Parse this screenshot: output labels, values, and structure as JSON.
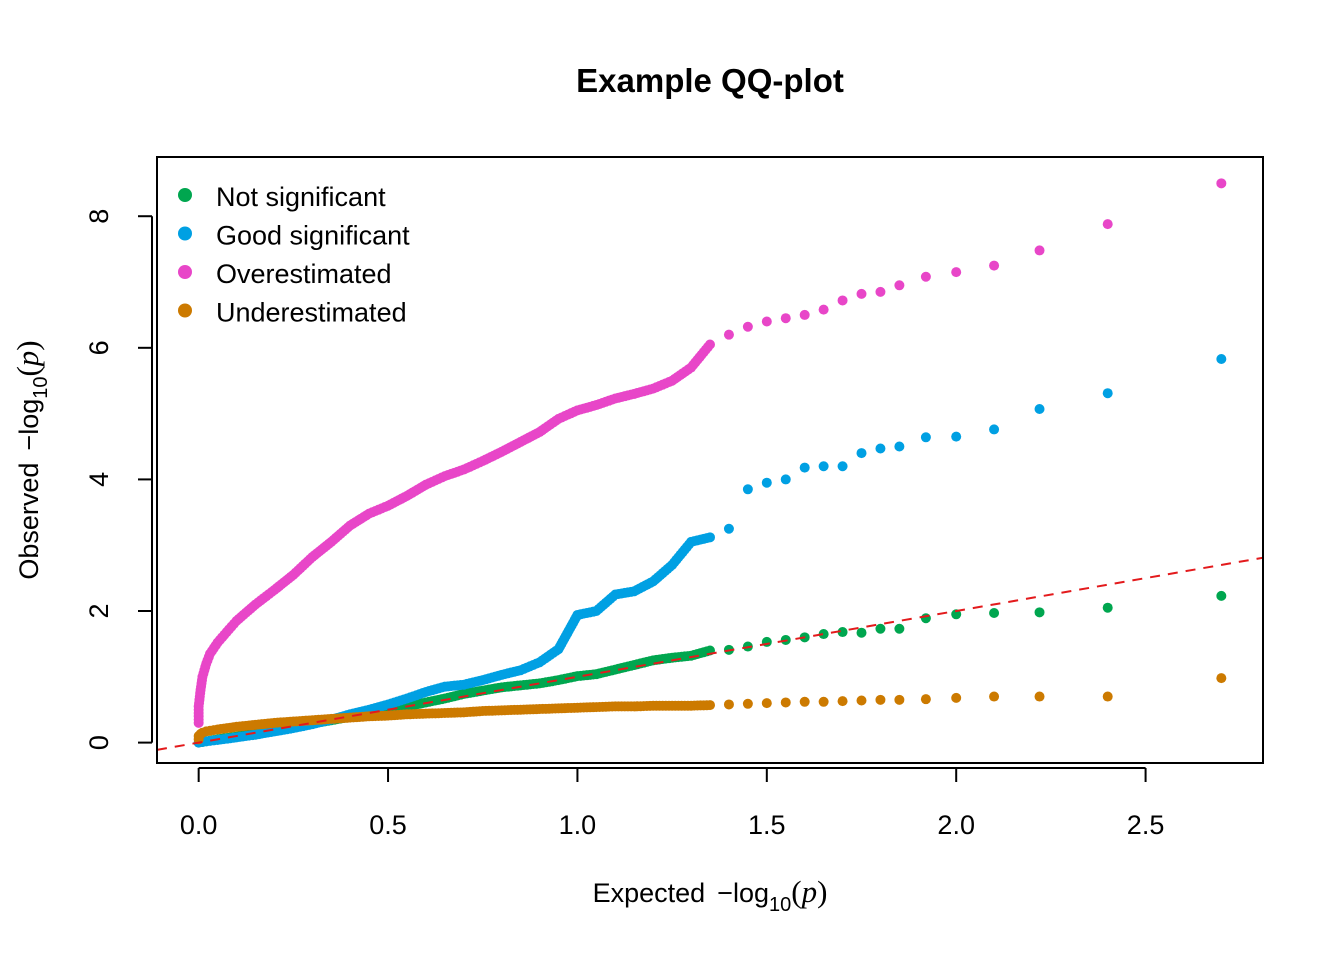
{
  "chart_data": {
    "type": "scatter",
    "title": "Example QQ-plot",
    "xlabel": {
      "prefix": "Expected",
      "minus": "−",
      "fn": "log",
      "sub": "10",
      "open": "(",
      "var": "p",
      "close": ")"
    },
    "ylabel": {
      "prefix": "Observed",
      "minus": "−",
      "fn": "log",
      "sub": "10",
      "open": "(",
      "var": "p",
      "close": ")"
    },
    "xlim": [
      -0.11,
      2.81
    ],
    "ylim": [
      -0.31,
      8.9
    ],
    "x_ticks": [
      "0.0",
      "0.5",
      "1.0",
      "1.5",
      "2.0",
      "2.5"
    ],
    "y_ticks": [
      "0",
      "2",
      "4",
      "6",
      "8"
    ],
    "reference_line": {
      "slope": 1,
      "intercept": 0,
      "color": "#e31a1c",
      "style": "dashed"
    },
    "legend_position": "top-left",
    "series": [
      {
        "name": "Not significant",
        "color": "#00a64f",
        "points": [
          [
            0.0,
            0.0
          ],
          [
            0.02,
            0.02
          ],
          [
            0.05,
            0.05
          ],
          [
            0.1,
            0.09
          ],
          [
            0.15,
            0.14
          ],
          [
            0.2,
            0.19
          ],
          [
            0.25,
            0.24
          ],
          [
            0.3,
            0.29
          ],
          [
            0.35,
            0.34
          ],
          [
            0.4,
            0.39
          ],
          [
            0.45,
            0.44
          ],
          [
            0.5,
            0.49
          ],
          [
            0.55,
            0.55
          ],
          [
            0.6,
            0.61
          ],
          [
            0.65,
            0.67
          ],
          [
            0.7,
            0.74
          ],
          [
            0.75,
            0.79
          ],
          [
            0.8,
            0.84
          ],
          [
            0.85,
            0.87
          ],
          [
            0.9,
            0.9
          ],
          [
            0.95,
            0.95
          ],
          [
            1.0,
            1.01
          ],
          [
            1.05,
            1.04
          ],
          [
            1.1,
            1.11
          ],
          [
            1.15,
            1.18
          ],
          [
            1.2,
            1.25
          ],
          [
            1.25,
            1.29
          ],
          [
            1.3,
            1.32
          ],
          [
            1.35,
            1.4
          ],
          [
            1.4,
            1.41
          ],
          [
            1.45,
            1.46
          ],
          [
            1.5,
            1.53
          ],
          [
            1.55,
            1.56
          ],
          [
            1.6,
            1.6
          ],
          [
            1.65,
            1.65
          ],
          [
            1.7,
            1.68
          ],
          [
            1.75,
            1.67
          ],
          [
            1.8,
            1.73
          ],
          [
            1.85,
            1.73
          ],
          [
            1.92,
            1.89
          ],
          [
            2.0,
            1.95
          ],
          [
            2.1,
            1.97
          ],
          [
            2.22,
            1.98
          ],
          [
            2.4,
            2.05
          ],
          [
            2.7,
            2.23
          ]
        ]
      },
      {
        "name": "Good significant",
        "color": "#00a0e3",
        "points": [
          [
            0.0,
            0.0
          ],
          [
            0.02,
            0.02
          ],
          [
            0.05,
            0.04
          ],
          [
            0.1,
            0.08
          ],
          [
            0.15,
            0.12
          ],
          [
            0.2,
            0.17
          ],
          [
            0.25,
            0.22
          ],
          [
            0.3,
            0.28
          ],
          [
            0.35,
            0.35
          ],
          [
            0.4,
            0.43
          ],
          [
            0.45,
            0.5
          ],
          [
            0.5,
            0.58
          ],
          [
            0.55,
            0.67
          ],
          [
            0.6,
            0.77
          ],
          [
            0.65,
            0.85
          ],
          [
            0.7,
            0.88
          ],
          [
            0.75,
            0.95
          ],
          [
            0.8,
            1.03
          ],
          [
            0.85,
            1.1
          ],
          [
            0.9,
            1.22
          ],
          [
            0.95,
            1.42
          ],
          [
            1.0,
            1.94
          ],
          [
            1.05,
            2.0
          ],
          [
            1.1,
            2.25
          ],
          [
            1.15,
            2.3
          ],
          [
            1.2,
            2.45
          ],
          [
            1.25,
            2.7
          ],
          [
            1.3,
            3.05
          ],
          [
            1.35,
            3.12
          ],
          [
            1.4,
            3.25
          ],
          [
            1.45,
            3.85
          ],
          [
            1.5,
            3.95
          ],
          [
            1.55,
            4.0
          ],
          [
            1.6,
            4.18
          ],
          [
            1.65,
            4.2
          ],
          [
            1.7,
            4.2
          ],
          [
            1.75,
            4.4
          ],
          [
            1.8,
            4.47
          ],
          [
            1.85,
            4.5
          ],
          [
            1.92,
            4.64
          ],
          [
            2.0,
            4.65
          ],
          [
            2.1,
            4.76
          ],
          [
            2.22,
            5.07
          ],
          [
            2.4,
            5.31
          ],
          [
            2.7,
            5.83
          ]
        ]
      },
      {
        "name": "Overestimated",
        "color": "#e846c8",
        "points": [
          [
            0.0,
            0.3
          ],
          [
            0.0,
            0.55
          ],
          [
            0.005,
            0.8
          ],
          [
            0.01,
            1.0
          ],
          [
            0.02,
            1.2
          ],
          [
            0.03,
            1.35
          ],
          [
            0.05,
            1.52
          ],
          [
            0.08,
            1.72
          ],
          [
            0.1,
            1.85
          ],
          [
            0.15,
            2.1
          ],
          [
            0.2,
            2.32
          ],
          [
            0.25,
            2.55
          ],
          [
            0.3,
            2.82
          ],
          [
            0.35,
            3.05
          ],
          [
            0.4,
            3.3
          ],
          [
            0.45,
            3.48
          ],
          [
            0.5,
            3.6
          ],
          [
            0.55,
            3.75
          ],
          [
            0.6,
            3.92
          ],
          [
            0.65,
            4.05
          ],
          [
            0.7,
            4.15
          ],
          [
            0.75,
            4.28
          ],
          [
            0.8,
            4.42
          ],
          [
            0.85,
            4.57
          ],
          [
            0.9,
            4.72
          ],
          [
            0.95,
            4.92
          ],
          [
            1.0,
            5.05
          ],
          [
            1.05,
            5.13
          ],
          [
            1.1,
            5.23
          ],
          [
            1.15,
            5.3
          ],
          [
            1.2,
            5.38
          ],
          [
            1.25,
            5.5
          ],
          [
            1.3,
            5.7
          ],
          [
            1.35,
            6.05
          ],
          [
            1.4,
            6.2
          ],
          [
            1.45,
            6.32
          ],
          [
            1.5,
            6.4
          ],
          [
            1.55,
            6.45
          ],
          [
            1.6,
            6.5
          ],
          [
            1.65,
            6.58
          ],
          [
            1.7,
            6.72
          ],
          [
            1.75,
            6.82
          ],
          [
            1.8,
            6.85
          ],
          [
            1.85,
            6.95
          ],
          [
            1.92,
            7.08
          ],
          [
            2.0,
            7.15
          ],
          [
            2.1,
            7.25
          ],
          [
            2.22,
            7.48
          ],
          [
            2.4,
            7.88
          ],
          [
            2.7,
            8.5
          ]
        ]
      },
      {
        "name": "Underestimated",
        "color": "#cc7a00",
        "points": [
          [
            0.0,
            0.05
          ],
          [
            0.0,
            0.1
          ],
          [
            0.005,
            0.13
          ],
          [
            0.01,
            0.15
          ],
          [
            0.02,
            0.17
          ],
          [
            0.05,
            0.2
          ],
          [
            0.1,
            0.24
          ],
          [
            0.15,
            0.27
          ],
          [
            0.2,
            0.3
          ],
          [
            0.25,
            0.32
          ],
          [
            0.3,
            0.34
          ],
          [
            0.35,
            0.36
          ],
          [
            0.4,
            0.38
          ],
          [
            0.45,
            0.4
          ],
          [
            0.5,
            0.41
          ],
          [
            0.55,
            0.43
          ],
          [
            0.6,
            0.44
          ],
          [
            0.65,
            0.45
          ],
          [
            0.7,
            0.46
          ],
          [
            0.75,
            0.48
          ],
          [
            0.8,
            0.49
          ],
          [
            0.85,
            0.5
          ],
          [
            0.9,
            0.51
          ],
          [
            0.95,
            0.52
          ],
          [
            1.0,
            0.53
          ],
          [
            1.05,
            0.54
          ],
          [
            1.1,
            0.55
          ],
          [
            1.15,
            0.55
          ],
          [
            1.2,
            0.56
          ],
          [
            1.25,
            0.56
          ],
          [
            1.3,
            0.56
          ],
          [
            1.35,
            0.57
          ],
          [
            1.4,
            0.58
          ],
          [
            1.45,
            0.59
          ],
          [
            1.5,
            0.6
          ],
          [
            1.55,
            0.61
          ],
          [
            1.6,
            0.62
          ],
          [
            1.65,
            0.62
          ],
          [
            1.7,
            0.63
          ],
          [
            1.75,
            0.64
          ],
          [
            1.8,
            0.65
          ],
          [
            1.85,
            0.65
          ],
          [
            1.92,
            0.66
          ],
          [
            2.0,
            0.68
          ],
          [
            2.1,
            0.7
          ],
          [
            2.22,
            0.7
          ],
          [
            2.4,
            0.7
          ],
          [
            2.7,
            0.98
          ]
        ]
      }
    ]
  }
}
